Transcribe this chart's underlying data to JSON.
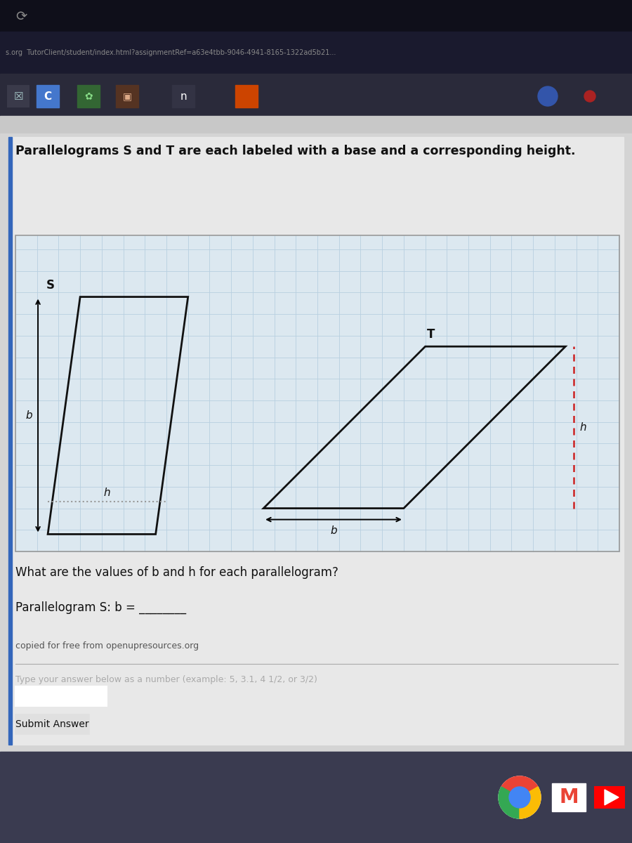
{
  "bg_very_dark": "#0f0f1a",
  "bg_dark_bar": "#1a1a2e",
  "bg_toolbar": "#2a2a3a",
  "bg_light_gray": "#d4d4d4",
  "bg_panel": "#e8e8e8",
  "bg_grid": "#dce8f0",
  "grid_line_color": "#b8cfe0",
  "title_text": "Parallelograms S and T are each labeled with a base and a corresponding height.",
  "s_label": "S",
  "t_label": "T",
  "b_label": "b",
  "h_label": "h",
  "question_text": "What are the values of b and h for each parallelogram?",
  "answer_text": "Parallelogram S: b = ________",
  "credit_text": "copied for free from openupresources.org",
  "input_hint": "Type your answer below as a number (example: 5, 3.1, 4 1/2, or 3/2)",
  "submit_text": "Submit Answer",
  "url_text": "s.org  TutorClient/student/index.html?assignmentRef=a63e4tbb-9046-4941-8165-1322ad5b21...",
  "parallelogram_color": "#111111",
  "dashed_color": "#cc2222",
  "dotted_color": "#999999",
  "accent_bar_color": "#3366bb"
}
